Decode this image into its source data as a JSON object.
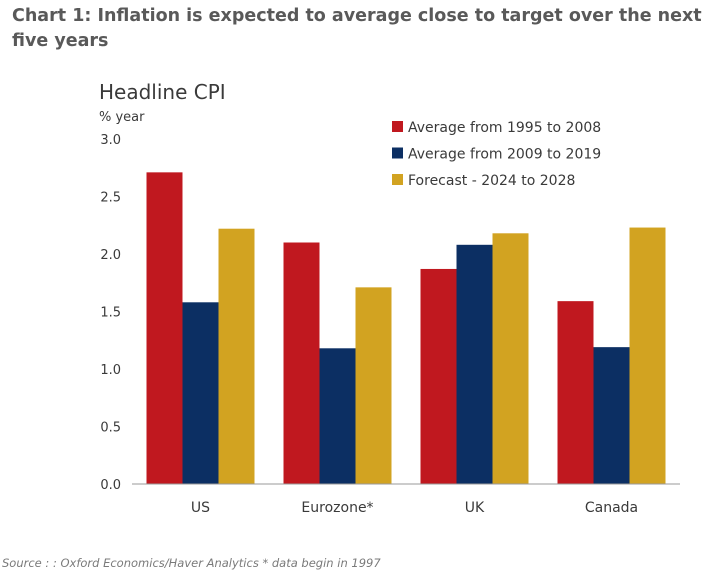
{
  "page": {
    "title": "Chart 1: Inflation is expected to average close to target over the next five years",
    "source_prefix": "Source : ",
    "source_text": ": Oxford Economics/Haver Analytics * data begin in 1997"
  },
  "chart_data": {
    "type": "bar",
    "title": "Headline CPI",
    "ylabel": "% year",
    "xlabel": "",
    "categories": [
      "US",
      "Eurozone*",
      "UK",
      "Canada"
    ],
    "ylim": [
      0,
      3.0
    ],
    "yticks": [
      "3.0",
      "2.5",
      "2.0",
      "1.5",
      "1.0",
      "0.5",
      "0.0"
    ],
    "grid": false,
    "legend_position": "top-right",
    "series": [
      {
        "name": "Average from 1995 to 2008",
        "color": "#c0181f",
        "values": [
          2.71,
          2.1,
          1.87,
          1.59
        ]
      },
      {
        "name": "Average from 2009 to 2019",
        "color": "#0c2f63",
        "values": [
          1.58,
          1.18,
          2.08,
          1.19
        ]
      },
      {
        "name": "Forecast - 2024 to 2028",
        "color": "#d2a321",
        "values": [
          2.22,
          1.71,
          2.18,
          2.23
        ]
      }
    ]
  }
}
